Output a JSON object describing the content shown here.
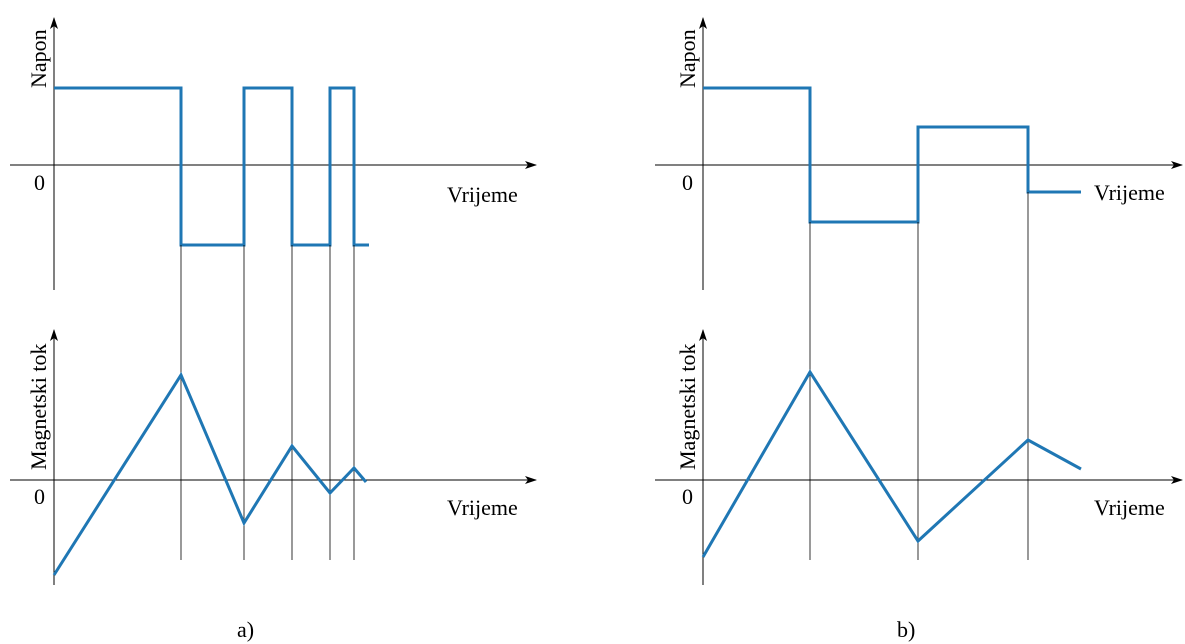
{
  "panels": [
    {
      "id": "a",
      "caption": "a)",
      "top_ylabel": "Napon",
      "bottom_ylabel": "Magnetski tok",
      "xlabel_top": "Vrijeme",
      "xlabel_bottom": "Vrijeme",
      "zero_top": "0",
      "zero_bottom": "0"
    },
    {
      "id": "b",
      "caption": "b)",
      "top_ylabel": "Napon",
      "bottom_ylabel": "Magnetski tok",
      "xlabel_top": "Vrijeme",
      "xlabel_bottom": "Vrijeme",
      "zero_top": "0",
      "zero_bottom": "0"
    }
  ],
  "colors": {
    "waveform": "#1f77b4",
    "axes": "#000000"
  }
}
